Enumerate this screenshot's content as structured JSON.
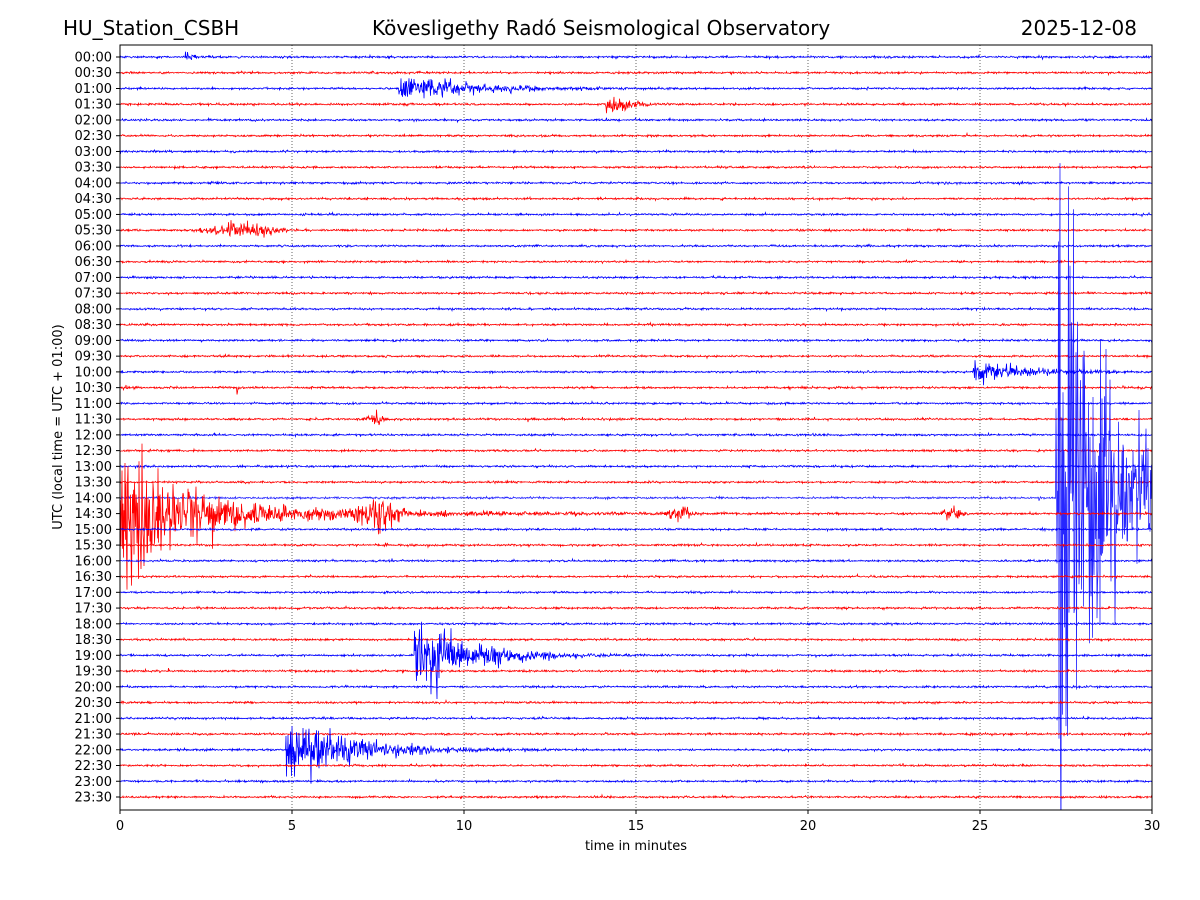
{
  "header": {
    "station": "HU_Station_CSBH",
    "observatory": "Kövesligethy Radó Seismological Observatory",
    "date": "2025-12-08"
  },
  "chart_data": {
    "type": "line",
    "subtype": "helicorder",
    "xlabel": "time in minutes",
    "ylabel": "UTC (local time = UTC + 01:00)",
    "xlim": [
      0,
      30
    ],
    "xticks": [
      0,
      5,
      10,
      15,
      20,
      25,
      30
    ],
    "grid": "vertical dotted at x ticks",
    "row_labels": [
      "00:00",
      "00:30",
      "01:00",
      "01:30",
      "02:00",
      "02:30",
      "03:00",
      "03:30",
      "04:00",
      "04:30",
      "05:00",
      "05:30",
      "06:00",
      "06:30",
      "07:00",
      "07:30",
      "08:00",
      "08:30",
      "09:00",
      "09:30",
      "10:00",
      "10:30",
      "11:00",
      "11:30",
      "12:00",
      "12:30",
      "13:00",
      "13:30",
      "14:00",
      "14:30",
      "15:00",
      "15:30",
      "16:00",
      "16:30",
      "17:00",
      "17:30",
      "18:00",
      "18:30",
      "19:00",
      "19:30",
      "20:00",
      "20:30",
      "21:00",
      "21:30",
      "22:00",
      "22:30",
      "23:00",
      "23:30"
    ],
    "row_colors": [
      "#0000ff",
      "#ff0000"
    ],
    "amplitude_unit": "trace spacings",
    "events": [
      {
        "row": "00:00",
        "kind": "impulsive",
        "start": 1.9,
        "amp": 0.45,
        "decay": 0.25
      },
      {
        "row": "01:00",
        "kind": "impulsive",
        "start": 8.1,
        "amp": 0.9,
        "decay": 2.2
      },
      {
        "row": "01:30",
        "kind": "impulsive",
        "start": 14.1,
        "amp": 0.8,
        "decay": 0.6
      },
      {
        "row": "05:30",
        "kind": "emergent",
        "start": 3.5,
        "amp": 0.55,
        "decay": 1.0
      },
      {
        "row": "10:00",
        "kind": "impulsive",
        "start": 24.8,
        "amp": 0.7,
        "decay": 1.8
      },
      {
        "row": "10:30",
        "kind": "impulsive",
        "start": 0.1,
        "amp": 0.2,
        "decay": 0.2
      },
      {
        "row": "10:30",
        "kind": "impulsive",
        "start": 3.4,
        "amp": 0.4,
        "decay": 0.08
      },
      {
        "row": "11:30",
        "kind": "emergent",
        "start": 7.4,
        "amp": 0.4,
        "decay": 0.3
      },
      {
        "row": "14:00",
        "kind": "impulsive",
        "start": 27.2,
        "amp": 19,
        "decay": 1.1
      },
      {
        "row": "14:00",
        "kind": "impulsive",
        "start": 27.2,
        "amp": 4,
        "decay": 8
      },
      {
        "row": "14:30",
        "kind": "impulsive",
        "start": 0.0,
        "amp": 4.2,
        "decay": 1.4
      },
      {
        "row": "14:30",
        "kind": "impulsive",
        "start": 0.55,
        "amp": 7.5,
        "decay": 0.08
      },
      {
        "row": "14:30",
        "kind": "impulsive",
        "start": 0.0,
        "amp": 0.8,
        "decay": 6
      },
      {
        "row": "14:30",
        "kind": "emergent",
        "start": 7.5,
        "amp": 1.1,
        "decay": 0.5
      },
      {
        "row": "14:30",
        "kind": "emergent",
        "start": 16.3,
        "amp": 0.5,
        "decay": 0.3
      },
      {
        "row": "14:30",
        "kind": "emergent",
        "start": 24.2,
        "amp": 0.5,
        "decay": 0.3
      },
      {
        "row": "19:00",
        "kind": "impulsive",
        "start": 8.55,
        "amp": 2.6,
        "decay": 1.6
      },
      {
        "row": "22:00",
        "kind": "impulsive",
        "start": 4.8,
        "amp": 2.1,
        "decay": 2.0
      }
    ]
  }
}
